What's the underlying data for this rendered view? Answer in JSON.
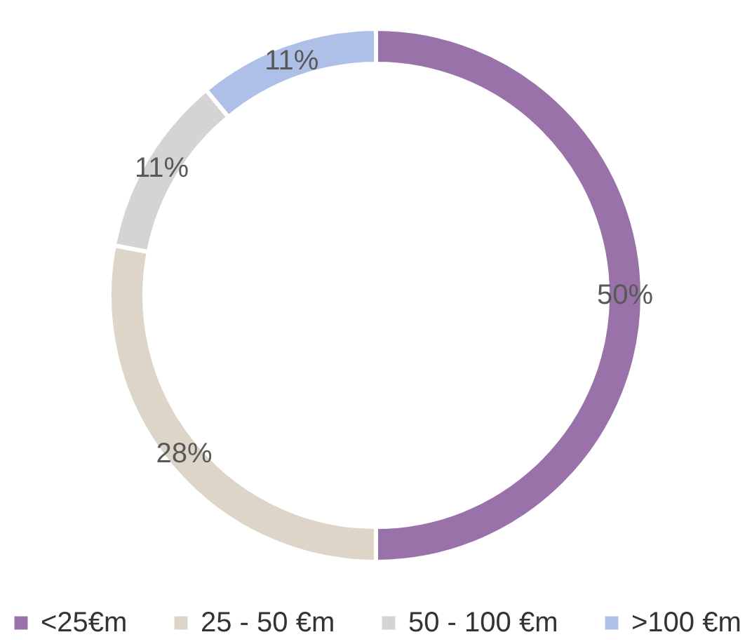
{
  "chart_data": {
    "type": "donut",
    "categories": [
      "<25€m",
      "25 - 50 €m",
      "50 - 100 €m",
      ">100 €m"
    ],
    "values": [
      50,
      28,
      11,
      11
    ],
    "colors": [
      "#9a72aa",
      "#ddd6c8",
      "#d4d4d6",
      "#aec0e8"
    ],
    "value_labels": [
      "50%",
      "28%",
      "11%",
      "11%"
    ],
    "legend": "bottom"
  }
}
